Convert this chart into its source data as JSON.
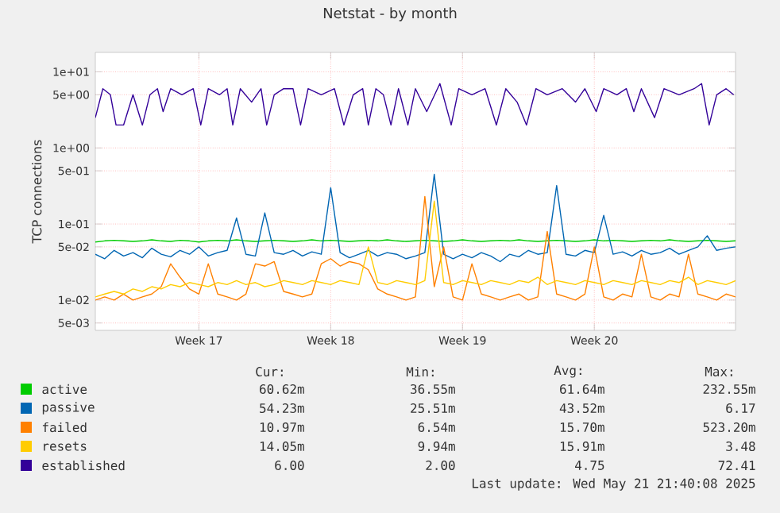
{
  "chart_data": {
    "type": "line",
    "title": "Netstat - by month",
    "ylabel": "TCP connections",
    "log": true,
    "grid": true,
    "legend": "bottom",
    "xlim": [
      "2025-04-18T12:00",
      "2025-05-22T12:00"
    ],
    "ylim": [
      0.004,
      18
    ],
    "xticks": [
      {
        "value": "2025-04-24",
        "label": "Week 17"
      },
      {
        "value": "2025-05-01",
        "label": "Week 18"
      },
      {
        "value": "2025-05-08",
        "label": "Week 19"
      },
      {
        "value": "2025-05-15",
        "label": "Week 20"
      }
    ],
    "yticks": [
      {
        "value": 0.005,
        "label": "5e-03"
      },
      {
        "value": 0.01,
        "label": "1e-02"
      },
      {
        "value": 0.05,
        "label": "5e-02"
      },
      {
        "value": 0.1,
        "label": "1e-01"
      },
      {
        "value": 0.5,
        "label": "5e-01"
      },
      {
        "value": 1,
        "label": "1e+00"
      },
      {
        "value": 5,
        "label": "5e+00"
      },
      {
        "value": 10,
        "label": "1e+01"
      }
    ],
    "x": [
      "2025-04-18T12:00",
      "2025-04-19T00:00",
      "2025-04-19T12:00",
      "2025-04-20T00:00",
      "2025-04-20T12:00",
      "2025-04-21T00:00",
      "2025-04-21T12:00",
      "2025-04-22T00:00",
      "2025-04-22T12:00",
      "2025-04-23T00:00",
      "2025-04-23T12:00",
      "2025-04-24T00:00",
      "2025-04-24T12:00",
      "2025-04-25T00:00",
      "2025-04-25T12:00",
      "2025-04-26T00:00",
      "2025-04-26T12:00",
      "2025-04-27T00:00",
      "2025-04-27T12:00",
      "2025-04-28T00:00",
      "2025-04-28T12:00",
      "2025-04-29T00:00",
      "2025-04-29T12:00",
      "2025-04-30T00:00",
      "2025-04-30T12:00",
      "2025-05-01T00:00",
      "2025-05-01T12:00",
      "2025-05-02T00:00",
      "2025-05-02T12:00",
      "2025-05-03T00:00",
      "2025-05-03T12:00",
      "2025-05-04T00:00",
      "2025-05-04T12:00",
      "2025-05-05T00:00",
      "2025-05-05T12:00",
      "2025-05-06T00:00",
      "2025-05-06T12:00",
      "2025-05-07T00:00",
      "2025-05-07T12:00",
      "2025-05-08T00:00",
      "2025-05-08T12:00",
      "2025-05-09T00:00",
      "2025-05-09T12:00",
      "2025-05-10T00:00",
      "2025-05-10T12:00",
      "2025-05-11T00:00",
      "2025-05-11T12:00",
      "2025-05-12T00:00",
      "2025-05-12T12:00",
      "2025-05-13T00:00",
      "2025-05-13T12:00",
      "2025-05-14T00:00",
      "2025-05-14T12:00",
      "2025-05-15T00:00",
      "2025-05-15T12:00",
      "2025-05-16T00:00",
      "2025-05-16T12:00",
      "2025-05-17T00:00",
      "2025-05-17T12:00",
      "2025-05-18T00:00",
      "2025-05-18T12:00",
      "2025-05-19T00:00",
      "2025-05-19T12:00",
      "2025-05-20T00:00",
      "2025-05-20T12:00",
      "2025-05-21T00:00",
      "2025-05-21T12:00",
      "2025-05-22T00:00",
      "2025-05-22T12:00"
    ],
    "series": [
      {
        "name": "active",
        "color": "#00cc00",
        "values": [
          0.058,
          0.06,
          0.061,
          0.06,
          0.059,
          0.06,
          0.062,
          0.06,
          0.059,
          0.061,
          0.06,
          0.058,
          0.06,
          0.061,
          0.06,
          0.062,
          0.06,
          0.059,
          0.06,
          0.061,
          0.06,
          0.059,
          0.06,
          0.062,
          0.06,
          0.061,
          0.06,
          0.059,
          0.06,
          0.061,
          0.06,
          0.062,
          0.06,
          0.059,
          0.06,
          0.061,
          0.06,
          0.059,
          0.06,
          0.062,
          0.06,
          0.059,
          0.06,
          0.061,
          0.06,
          0.062,
          0.06,
          0.059,
          0.06,
          0.061,
          0.06,
          0.059,
          0.06,
          0.062,
          0.06,
          0.061,
          0.06,
          0.059,
          0.06,
          0.061,
          0.06,
          0.062,
          0.06,
          0.059,
          0.06,
          0.061,
          0.06,
          0.059,
          0.06
        ]
      },
      {
        "name": "passive",
        "color": "#0066b3",
        "values": [
          0.04,
          0.035,
          0.045,
          0.038,
          0.042,
          0.036,
          0.048,
          0.04,
          0.037,
          0.045,
          0.04,
          0.05,
          0.038,
          0.042,
          0.045,
          0.12,
          0.04,
          0.038,
          0.14,
          0.042,
          0.04,
          0.045,
          0.038,
          0.043,
          0.04,
          0.3,
          0.042,
          0.036,
          0.04,
          0.045,
          0.038,
          0.042,
          0.04,
          0.035,
          0.038,
          0.042,
          0.45,
          0.04,
          0.035,
          0.04,
          0.036,
          0.042,
          0.038,
          0.032,
          0.04,
          0.037,
          0.045,
          0.04,
          0.042,
          0.32,
          0.04,
          0.038,
          0.045,
          0.042,
          0.13,
          0.04,
          0.043,
          0.038,
          0.045,
          0.04,
          0.042,
          0.048,
          0.04,
          0.045,
          0.05,
          0.07,
          0.045,
          0.048,
          0.05
        ]
      },
      {
        "name": "failed",
        "color": "#ff8000",
        "values": [
          0.01,
          0.011,
          0.01,
          0.012,
          0.01,
          0.011,
          0.012,
          0.015,
          0.03,
          0.02,
          0.014,
          0.012,
          0.03,
          0.012,
          0.011,
          0.01,
          0.012,
          0.03,
          0.028,
          0.032,
          0.013,
          0.012,
          0.011,
          0.012,
          0.03,
          0.035,
          0.028,
          0.032,
          0.03,
          0.025,
          0.014,
          0.012,
          0.011,
          0.01,
          0.011,
          0.23,
          0.015,
          0.05,
          0.011,
          0.01,
          0.03,
          0.012,
          0.011,
          0.01,
          0.011,
          0.012,
          0.01,
          0.011,
          0.08,
          0.012,
          0.011,
          0.01,
          0.012,
          0.05,
          0.011,
          0.01,
          0.012,
          0.011,
          0.04,
          0.011,
          0.01,
          0.012,
          0.011,
          0.04,
          0.012,
          0.011,
          0.01,
          0.012,
          0.011
        ]
      },
      {
        "name": "resets",
        "color": "#ffcc00",
        "values": [
          0.011,
          0.012,
          0.013,
          0.012,
          0.014,
          0.013,
          0.015,
          0.014,
          0.016,
          0.015,
          0.017,
          0.016,
          0.015,
          0.017,
          0.016,
          0.018,
          0.016,
          0.017,
          0.015,
          0.016,
          0.018,
          0.017,
          0.016,
          0.018,
          0.017,
          0.016,
          0.018,
          0.017,
          0.016,
          0.05,
          0.017,
          0.016,
          0.018,
          0.017,
          0.016,
          0.018,
          0.2,
          0.017,
          0.016,
          0.018,
          0.017,
          0.016,
          0.018,
          0.017,
          0.016,
          0.018,
          0.017,
          0.02,
          0.016,
          0.018,
          0.017,
          0.016,
          0.018,
          0.017,
          0.016,
          0.018,
          0.017,
          0.016,
          0.018,
          0.017,
          0.016,
          0.018,
          0.017,
          0.02,
          0.016,
          0.018,
          0.017,
          0.016,
          0.018
        ]
      },
      {
        "name": "established",
        "color": "#330099",
        "x": [
          "2025-04-18T12:00",
          "2025-04-18T21:36",
          "2025-04-19T07:12",
          "2025-04-19T14:24",
          "2025-04-20T00:00",
          "2025-04-20T12:00",
          "2025-04-21T00:00",
          "2025-04-21T09:36",
          "2025-04-21T19:12",
          "2025-04-22T02:24",
          "2025-04-22T12:00",
          "2025-04-23T02:24",
          "2025-04-23T16:48",
          "2025-04-24T02:24",
          "2025-04-24T12:00",
          "2025-04-25T02:24",
          "2025-04-25T12:00",
          "2025-04-25T19:12",
          "2025-04-26T04:48",
          "2025-04-26T19:12",
          "2025-04-27T07:12",
          "2025-04-27T14:24",
          "2025-04-28T00:00",
          "2025-04-28T12:00",
          "2025-04-29T00:00",
          "2025-04-29T09:36",
          "2025-04-29T19:12",
          "2025-04-30T12:00",
          "2025-05-01T04:48",
          "2025-05-01T16:48",
          "2025-05-02T04:48",
          "2025-05-02T16:48",
          "2025-05-03T00:00",
          "2025-05-03T09:36",
          "2025-05-03T19:12",
          "2025-05-04T04:48",
          "2025-05-04T14:24",
          "2025-05-05T02:24",
          "2025-05-05T12:00",
          "2025-05-06T02:24",
          "2025-05-06T19:12",
          "2025-05-07T09:36",
          "2025-05-07T19:12",
          "2025-05-08T12:00",
          "2025-05-09T04:48",
          "2025-05-09T19:12",
          "2025-05-10T07:12",
          "2025-05-10T21:36",
          "2025-05-11T09:36",
          "2025-05-11T21:36",
          "2025-05-12T12:00",
          "2025-05-13T07:12",
          "2025-05-14T00:00",
          "2025-05-14T12:00",
          "2025-05-15T02:24",
          "2025-05-15T12:00",
          "2025-05-16T04:48",
          "2025-05-16T16:48",
          "2025-05-17T02:24",
          "2025-05-17T12:00",
          "2025-05-18T04:48",
          "2025-05-18T16:48",
          "2025-05-19T12:00",
          "2025-05-20T07:12",
          "2025-05-20T16:48",
          "2025-05-21T02:24",
          "2025-05-21T12:00",
          "2025-05-22T00:00",
          "2025-05-22T09:36"
        ],
        "values": [
          2.5,
          6,
          5,
          2,
          2,
          5,
          2,
          5,
          6,
          3,
          6,
          5,
          6,
          2,
          6,
          5,
          6,
          2,
          6,
          4,
          6,
          2,
          5,
          6,
          6,
          2,
          6,
          5,
          6,
          2,
          5,
          6,
          2,
          6,
          5,
          2,
          6,
          2,
          6,
          3,
          7,
          2,
          6,
          5,
          6,
          2,
          6,
          4,
          2,
          6,
          5,
          6,
          4,
          6,
          3,
          6,
          5,
          6,
          3,
          6,
          2.5,
          6,
          5,
          6,
          7,
          2,
          5,
          6,
          5
        ]
      }
    ],
    "annotations": [
      "Cur:",
      "Min:",
      "Avg:",
      "Max:",
      "60.62m",
      "36.55m",
      "61.64m",
      "232.55m",
      "54.23m",
      "25.51m",
      "43.52m",
      "6.17",
      "10.97m",
      "6.54m",
      "15.70m",
      "523.20m",
      "14.05m",
      "9.94m",
      "15.91m",
      "3.48",
      "6.00",
      "2.00",
      "4.75",
      "72.41",
      "Last update: Wed May 21 21:40:08 2025"
    ]
  }
}
